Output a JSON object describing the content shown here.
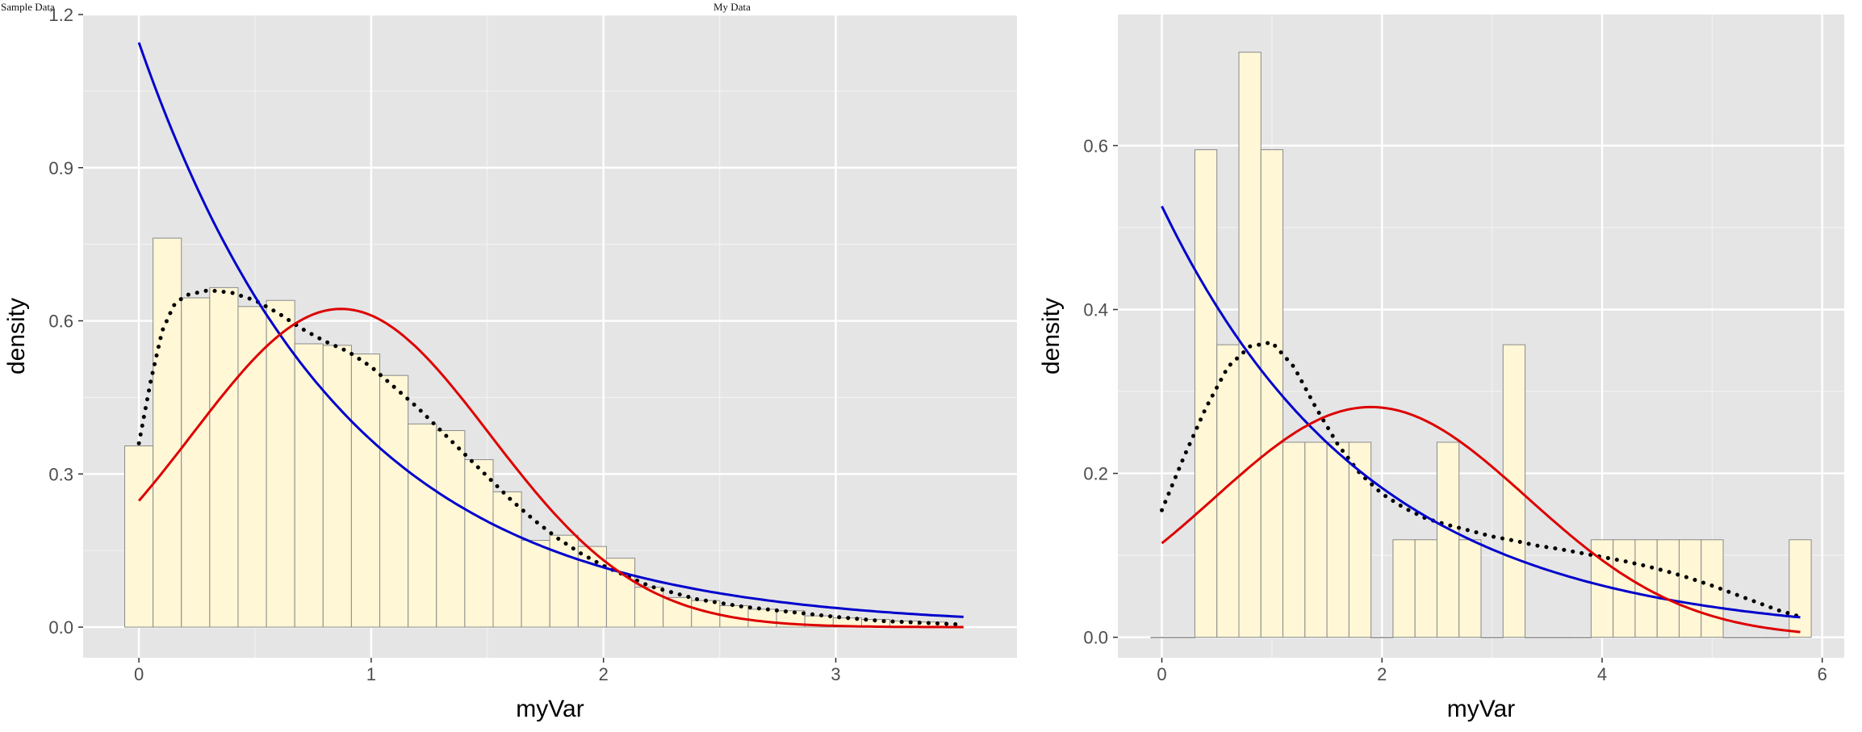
{
  "left_title": "Sample Data",
  "right_title": "My Data",
  "chart_data": [
    {
      "type": "bar",
      "title": "Sample Data",
      "xlabel": "myVar",
      "ylabel": "density",
      "xlim": [
        -0.24,
        3.78
      ],
      "ylim": [
        -0.06,
        1.2
      ],
      "xticks": [
        0,
        1,
        2,
        3
      ],
      "yticks": [
        0.0,
        0.3,
        0.6,
        0.9,
        1.2
      ],
      "ytick_labels": [
        "0.0",
        "0.3",
        "0.6",
        "0.9",
        "1.2"
      ],
      "grid": true,
      "background": "#e5e5e5",
      "bar_fill": "#fff7d6",
      "bar_stroke": "#8a8a8a",
      "histogram": {
        "binwidth": 0.122,
        "start": -0.061,
        "values": [
          0.355,
          0.762,
          0.645,
          0.665,
          0.628,
          0.64,
          0.555,
          0.552,
          0.535,
          0.493,
          0.398,
          0.385,
          0.328,
          0.265,
          0.17,
          0.18,
          0.158,
          0.135,
          0.078,
          0.058,
          0.052,
          0.042,
          0.035,
          0.032,
          0.022,
          0.018,
          0.015,
          0.012,
          0.01
        ]
      },
      "series": [
        {
          "color": "#000000",
          "style": "dotted",
          "x": [
            0,
            0.05,
            0.1,
            0.15,
            0.2,
            0.3,
            0.4,
            0.5,
            0.6,
            0.7,
            0.8,
            0.9,
            1.0,
            1.1,
            1.2,
            1.3,
            1.4,
            1.5,
            1.6,
            1.7,
            1.8,
            1.9,
            2.0,
            2.2,
            2.4,
            2.6,
            2.8,
            3.0,
            3.2,
            3.4,
            3.55
          ],
          "y": [
            0.36,
            0.48,
            0.58,
            0.63,
            0.65,
            0.66,
            0.655,
            0.64,
            0.615,
            0.585,
            0.56,
            0.54,
            0.51,
            0.47,
            0.43,
            0.385,
            0.34,
            0.295,
            0.25,
            0.21,
            0.175,
            0.145,
            0.12,
            0.08,
            0.055,
            0.04,
            0.03,
            0.02,
            0.012,
            0.008,
            0.005
          ]
        },
        {
          "color": "#0000cc",
          "style": "solid",
          "fn": "exp",
          "a": 1.145,
          "k": 1.14,
          "xrange": [
            0,
            3.55
          ]
        },
        {
          "color": "#dd0000",
          "style": "solid",
          "fn": "norm",
          "mean": 0.87,
          "sd": 0.64,
          "xrange": [
            0,
            3.55
          ]
        }
      ]
    },
    {
      "type": "bar",
      "title": "My Data",
      "xlabel": "myVar",
      "ylabel": "density",
      "xlim": [
        -0.4,
        6.2
      ],
      "ylim": [
        -0.025,
        0.76
      ],
      "xticks": [
        0,
        2,
        4,
        6
      ],
      "yticks": [
        0.0,
        0.2,
        0.4,
        0.6
      ],
      "ytick_labels": [
        "0.0",
        "0.2",
        "0.4",
        "0.6"
      ],
      "grid": true,
      "background": "#e5e5e5",
      "bar_fill": "#fff7d6",
      "bar_stroke": "#8a8a8a",
      "histogram": {
        "binwidth": 0.2,
        "start": -0.1,
        "values": [
          0,
          0,
          0.595,
          0.357,
          0.714,
          0.595,
          0.238,
          0.238,
          0.238,
          0.238,
          0,
          0.119,
          0.119,
          0.238,
          0.119,
          0,
          0.357,
          0,
          0,
          0,
          0.119,
          0.119,
          0.119,
          0.119,
          0.119,
          0.119,
          0,
          0,
          0,
          0.119
        ]
      },
      "series": [
        {
          "color": "#000000",
          "style": "dotted",
          "x": [
            0,
            0.2,
            0.4,
            0.6,
            0.8,
            1.0,
            1.2,
            1.4,
            1.6,
            1.8,
            2.0,
            2.2,
            2.4,
            2.6,
            2.8,
            3.0,
            3.2,
            3.4,
            3.6,
            3.8,
            4.0,
            4.2,
            4.4,
            4.6,
            4.8,
            5.0,
            5.2,
            5.4,
            5.6,
            5.8
          ],
          "y": [
            0.155,
            0.22,
            0.28,
            0.33,
            0.355,
            0.36,
            0.33,
            0.28,
            0.235,
            0.2,
            0.175,
            0.158,
            0.145,
            0.137,
            0.13,
            0.123,
            0.118,
            0.112,
            0.108,
            0.103,
            0.098,
            0.093,
            0.087,
            0.08,
            0.072,
            0.063,
            0.053,
            0.043,
            0.033,
            0.025
          ]
        },
        {
          "color": "#0000cc",
          "style": "solid",
          "fn": "exp",
          "a": 0.526,
          "k": 0.53,
          "xrange": [
            0,
            5.8
          ]
        },
        {
          "color": "#dd0000",
          "style": "solid",
          "fn": "norm",
          "mean": 1.9,
          "sd": 1.42,
          "xrange": [
            0,
            5.8
          ]
        }
      ]
    }
  ]
}
